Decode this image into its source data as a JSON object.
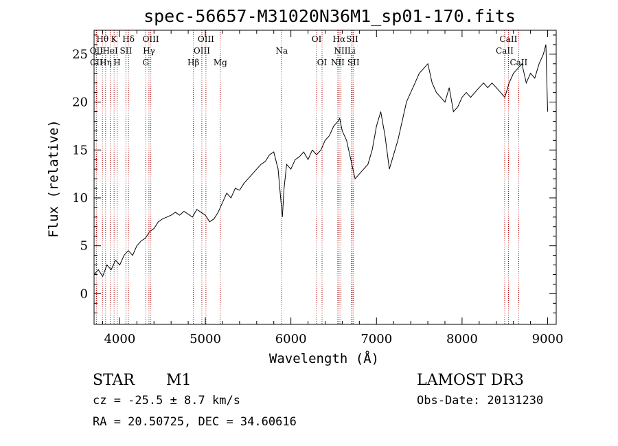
{
  "chart_data": {
    "type": "line",
    "title": "spec-56657-M31020N36M1_sp01-170.fits",
    "xlabel": "Wavelength (Å)",
    "ylabel": "Flux (relative)",
    "xlim": [
      3700,
      9100
    ],
    "ylim": [
      -3.2,
      27.5
    ],
    "xticks": [
      4000,
      5000,
      6000,
      7000,
      8000,
      9000
    ],
    "yticks": [
      0,
      5,
      10,
      15,
      20,
      25
    ],
    "series": [
      {
        "name": "spectrum",
        "x": [
          3700,
          3750,
          3800,
          3850,
          3900,
          3950,
          4000,
          4050,
          4100,
          4150,
          4200,
          4250,
          4300,
          4350,
          4400,
          4450,
          4500,
          4550,
          4600,
          4650,
          4700,
          4750,
          4800,
          4850,
          4900,
          4950,
          5000,
          5050,
          5100,
          5150,
          5200,
          5250,
          5300,
          5350,
          5400,
          5450,
          5500,
          5550,
          5600,
          5650,
          5700,
          5750,
          5800,
          5850,
          5880,
          5900,
          5920,
          5950,
          6000,
          6050,
          6100,
          6150,
          6200,
          6250,
          6300,
          6350,
          6400,
          6450,
          6500,
          6550,
          6570,
          6600,
          6650,
          6700,
          6750,
          6800,
          6850,
          6900,
          6950,
          7000,
          7050,
          7100,
          7150,
          7200,
          7250,
          7300,
          7350,
          7400,
          7450,
          7500,
          7550,
          7600,
          7650,
          7700,
          7750,
          7800,
          7850,
          7900,
          7950,
          8000,
          8050,
          8100,
          8150,
          8200,
          8250,
          8300,
          8350,
          8400,
          8450,
          8500,
          8550,
          8600,
          8650,
          8700,
          8750,
          8800,
          8850,
          8900,
          8950,
          8980,
          9000
        ],
        "y": [
          2,
          2.5,
          1.8,
          3,
          2.5,
          3.5,
          3,
          4,
          4.5,
          4,
          5,
          5.5,
          5.8,
          6.5,
          6.8,
          7.5,
          7.8,
          8,
          8.2,
          8.5,
          8.2,
          8.6,
          8.3,
          8,
          8.8,
          8.5,
          8.2,
          7.5,
          7.8,
          8.5,
          9.5,
          10.5,
          10,
          11,
          10.8,
          11.5,
          12,
          12.5,
          13,
          13.5,
          13.8,
          14.5,
          14.8,
          13,
          10,
          8,
          11,
          13.5,
          13,
          14,
          14.3,
          14.8,
          14,
          15,
          14.5,
          15,
          16,
          16.5,
          17.5,
          18,
          18.3,
          17,
          16,
          14,
          12,
          12.5,
          13,
          13.5,
          15,
          17.5,
          19,
          16.5,
          13,
          14.5,
          16,
          18,
          20,
          21,
          22,
          23,
          23.5,
          24,
          22,
          21,
          20.5,
          20,
          21.5,
          19,
          19.5,
          20.5,
          21,
          20.5,
          21,
          21.5,
          22,
          21.5,
          22,
          21.5,
          21,
          20.5,
          22,
          23,
          23.5,
          24,
          22,
          23,
          22.5,
          24,
          25,
          26,
          19
        ]
      }
    ],
    "emission_lines": [
      {
        "label": "Hθ",
        "wavelength": 3798,
        "row": 0
      },
      {
        "label": "OII",
        "wavelength": 3727,
        "row": 1
      },
      {
        "label": "CII",
        "wavelength": 3727,
        "row": 2
      },
      {
        "label": "Hη",
        "wavelength": 3835,
        "row": 2
      },
      {
        "label": "HeI",
        "wavelength": 3889,
        "row": 1
      },
      {
        "label": "K",
        "wavelength": 3934,
        "row": 0
      },
      {
        "label": "H",
        "wavelength": 3969,
        "row": 2
      },
      {
        "label": "SII",
        "wavelength": 4072,
        "row": 1
      },
      {
        "label": "Hδ",
        "wavelength": 4102,
        "row": 0
      },
      {
        "label": "OIII",
        "wavelength": 4363,
        "row": 0
      },
      {
        "label": "Hγ",
        "wavelength": 4341,
        "row": 1
      },
      {
        "label": "G",
        "wavelength": 4304,
        "row": 2
      },
      {
        "label": "Hβ",
        "wavelength": 4861,
        "row": 2
      },
      {
        "label": "OIII",
        "wavelength": 5007,
        "row": 0
      },
      {
        "label": "OIII",
        "wavelength": 4959,
        "row": 1
      },
      {
        "label": "Mg",
        "wavelength": 5175,
        "row": 2
      },
      {
        "label": "Na",
        "wavelength": 5893,
        "row": 1
      },
      {
        "label": "OI",
        "wavelength": 6300,
        "row": 0
      },
      {
        "label": "OI",
        "wavelength": 6364,
        "row": 2
      },
      {
        "label": "Hα",
        "wavelength": 6563,
        "row": 0
      },
      {
        "label": "NII",
        "wavelength": 6584,
        "row": 1
      },
      {
        "label": "NII",
        "wavelength": 6548,
        "row": 2
      },
      {
        "label": "SII",
        "wavelength": 6716,
        "row": 0
      },
      {
        "label": "Li",
        "wavelength": 6708,
        "row": 1
      },
      {
        "label": "SII",
        "wavelength": 6731,
        "row": 2
      },
      {
        "label": "CaII",
        "wavelength": 8542,
        "row": 0
      },
      {
        "label": "CaII",
        "wavelength": 8498,
        "row": 1
      },
      {
        "label": "CaII",
        "wavelength": 8662,
        "row": 2
      }
    ]
  },
  "info": {
    "class_label": "STAR",
    "subclass": "M1",
    "survey": "LAMOST DR3",
    "cz": "cz = -25.5 ± 8.7 km/s",
    "obs_date": "Obs-Date: 20131230",
    "coords": "RA =  20.50725, DEC =  34.60616"
  },
  "colors": {
    "spectrum": "#000000",
    "line_marker": "#b00000",
    "axis": "#000000"
  }
}
